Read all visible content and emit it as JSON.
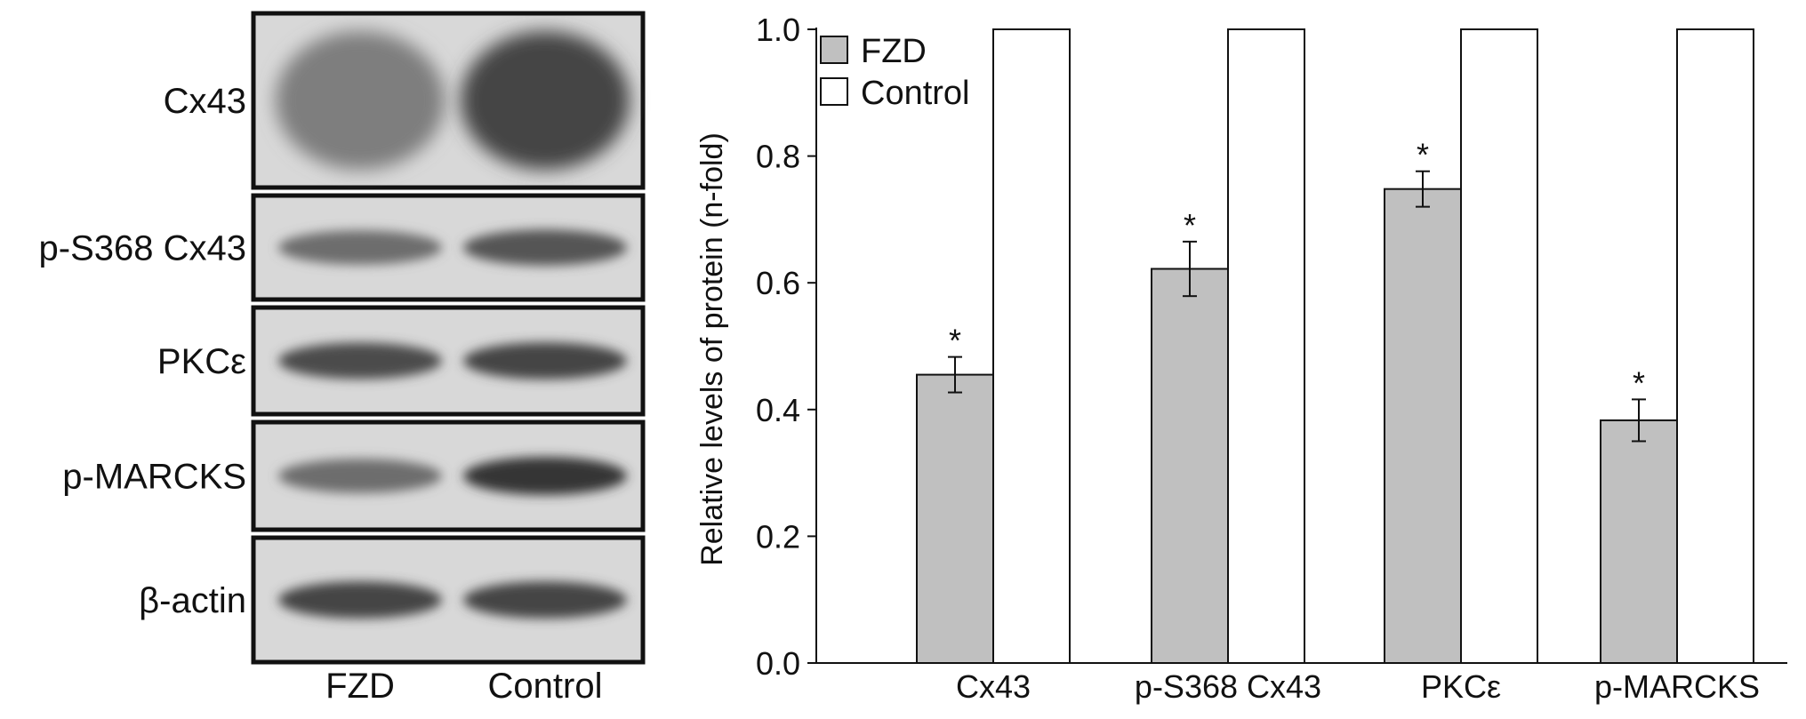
{
  "blot": {
    "rows": [
      {
        "label": "Cx43",
        "intensity": [
          0.45,
          0.8
        ]
      },
      {
        "label": "p-S368 Cx43",
        "intensity": [
          0.55,
          0.7
        ]
      },
      {
        "label": "PKCε",
        "intensity": [
          0.75,
          0.8
        ]
      },
      {
        "label": "p-MARCKS",
        "intensity": [
          0.55,
          0.9
        ]
      },
      {
        "label": "β-actin",
        "intensity": [
          0.8,
          0.8
        ]
      }
    ],
    "lanes": [
      "FZD",
      "Control"
    ]
  },
  "chart_data": {
    "type": "bar",
    "categories": [
      "Cx43",
      "p-S368 Cx43",
      "PKCε",
      "p-MARCKS"
    ],
    "series": [
      {
        "name": "FZD",
        "values": [
          0.455,
          0.622,
          0.748,
          0.383
        ],
        "errors": [
          0.028,
          0.043,
          0.028,
          0.033
        ],
        "color": "#c0c0c0"
      },
      {
        "name": "Control",
        "values": [
          1.0,
          1.0,
          1.0,
          1.0
        ],
        "color": "#ffffff"
      }
    ],
    "annotations": [
      "*",
      "*",
      "*",
      "*"
    ],
    "ylabel": "Relative levels of protein (n-fold)",
    "xlabel": "",
    "ylim": [
      0,
      1.0
    ],
    "yticks": [
      "0.0",
      "0.2",
      "0.4",
      "0.6",
      "0.8",
      "1.0"
    ],
    "legend_position": "top-left"
  }
}
